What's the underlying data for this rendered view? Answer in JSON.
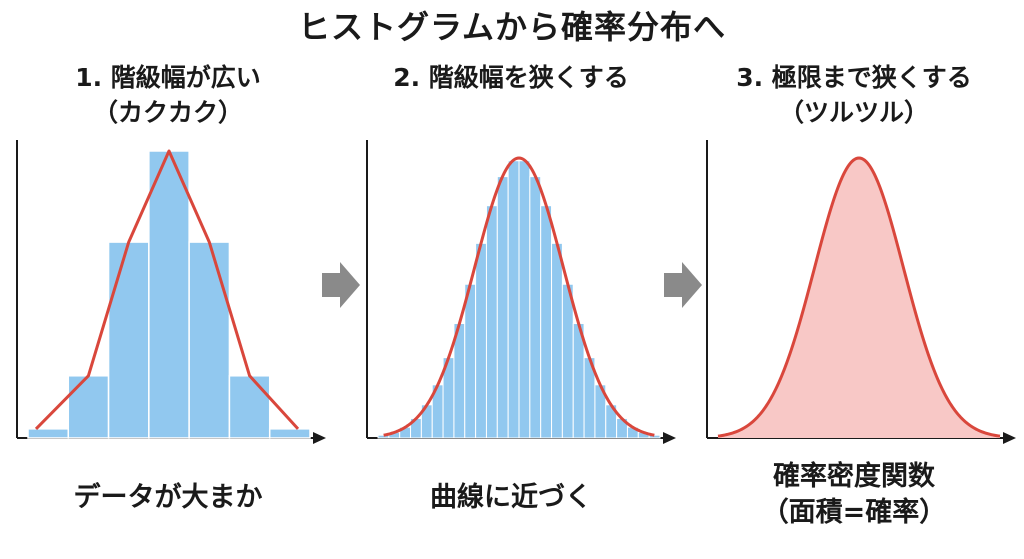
{
  "title": "ヒストグラムから確率分布へ",
  "panels": [
    {
      "heading_line1": "1. 階級幅が広い",
      "heading_line2": "（カクカク）",
      "caption_line1": "データが大まか",
      "caption_line2": "",
      "bin_count": 7
    },
    {
      "heading_line1": "2. 階級幅を狭くする",
      "heading_line2": "",
      "caption_line1": "曲線に近づく",
      "caption_line2": "",
      "bin_count": 26
    },
    {
      "heading_line1": "3. 極限まで狭くする",
      "heading_line2": "（ツルツル）",
      "caption_line1": "確率密度関数",
      "caption_line2": "（面積=確率）",
      "bin_count": 0
    }
  ],
  "arrow_icon": "right-arrow-icon",
  "colors": {
    "bar_fill": "#91c8ef",
    "bar_stroke": "#ffffff",
    "curve": "#d9473c",
    "area_fill": "#f8c8c6",
    "axis": "#1a1a1a",
    "arrow": "#8a8a8a"
  }
}
